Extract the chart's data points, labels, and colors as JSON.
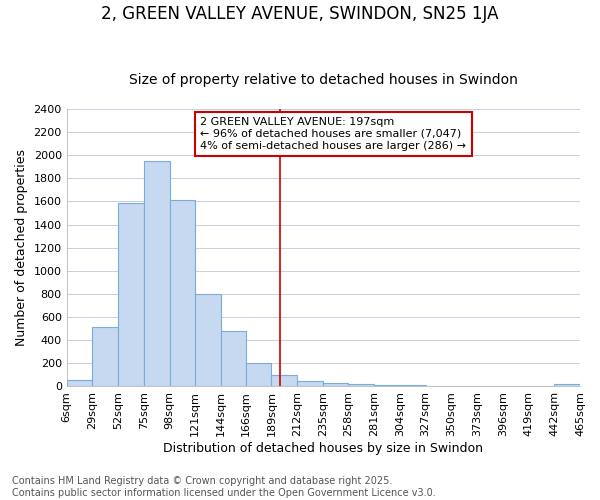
{
  "title": "2, GREEN VALLEY AVENUE, SWINDON, SN25 1JA",
  "subtitle": "Size of property relative to detached houses in Swindon",
  "xlabel": "Distribution of detached houses by size in Swindon",
  "ylabel": "Number of detached properties",
  "footer_line1": "Contains HM Land Registry data © Crown copyright and database right 2025.",
  "footer_line2": "Contains public sector information licensed under the Open Government Licence v3.0.",
  "annotation_line1": "2 GREEN VALLEY AVENUE: 197sqm",
  "annotation_line2": "← 96% of detached houses are smaller (7,047)",
  "annotation_line3": "4% of semi-detached houses are larger (286) →",
  "bar_left_edges": [
    6,
    29,
    52,
    75,
    98,
    121,
    144,
    166,
    189,
    212,
    235,
    258,
    281,
    304,
    327,
    350,
    373,
    396,
    419,
    442
  ],
  "bar_widths": [
    23,
    23,
    23,
    23,
    23,
    23,
    22,
    23,
    23,
    23,
    23,
    23,
    23,
    23,
    23,
    23,
    23,
    23,
    23,
    23
  ],
  "bar_heights": [
    55,
    510,
    1590,
    1950,
    1610,
    800,
    480,
    200,
    95,
    45,
    30,
    20,
    15,
    10,
    5,
    5,
    5,
    0,
    5,
    25
  ],
  "tick_labels": [
    "6sqm",
    "29sqm",
    "52sqm",
    "75sqm",
    "98sqm",
    "121sqm",
    "144sqm",
    "166sqm",
    "189sqm",
    "212sqm",
    "235sqm",
    "258sqm",
    "281sqm",
    "304sqm",
    "327sqm",
    "350sqm",
    "373sqm",
    "396sqm",
    "419sqm",
    "442sqm",
    "465sqm"
  ],
  "bar_color": "#c6d9f0",
  "bar_edge_color": "#7aadda",
  "background_color": "#ffffff",
  "plot_bg_color": "#ffffff",
  "grid_color": "#c8d0e0",
  "vline_color": "#cc0000",
  "vline_x": 197,
  "annotation_box_facecolor": "#ffffff",
  "annotation_box_edgecolor": "#cc0000",
  "ylim": [
    0,
    2400
  ],
  "yticks": [
    0,
    200,
    400,
    600,
    800,
    1000,
    1200,
    1400,
    1600,
    1800,
    2000,
    2200,
    2400
  ],
  "title_fontsize": 12,
  "subtitle_fontsize": 10,
  "axis_label_fontsize": 9,
  "tick_fontsize": 8,
  "annotation_fontsize": 8,
  "footer_fontsize": 7
}
